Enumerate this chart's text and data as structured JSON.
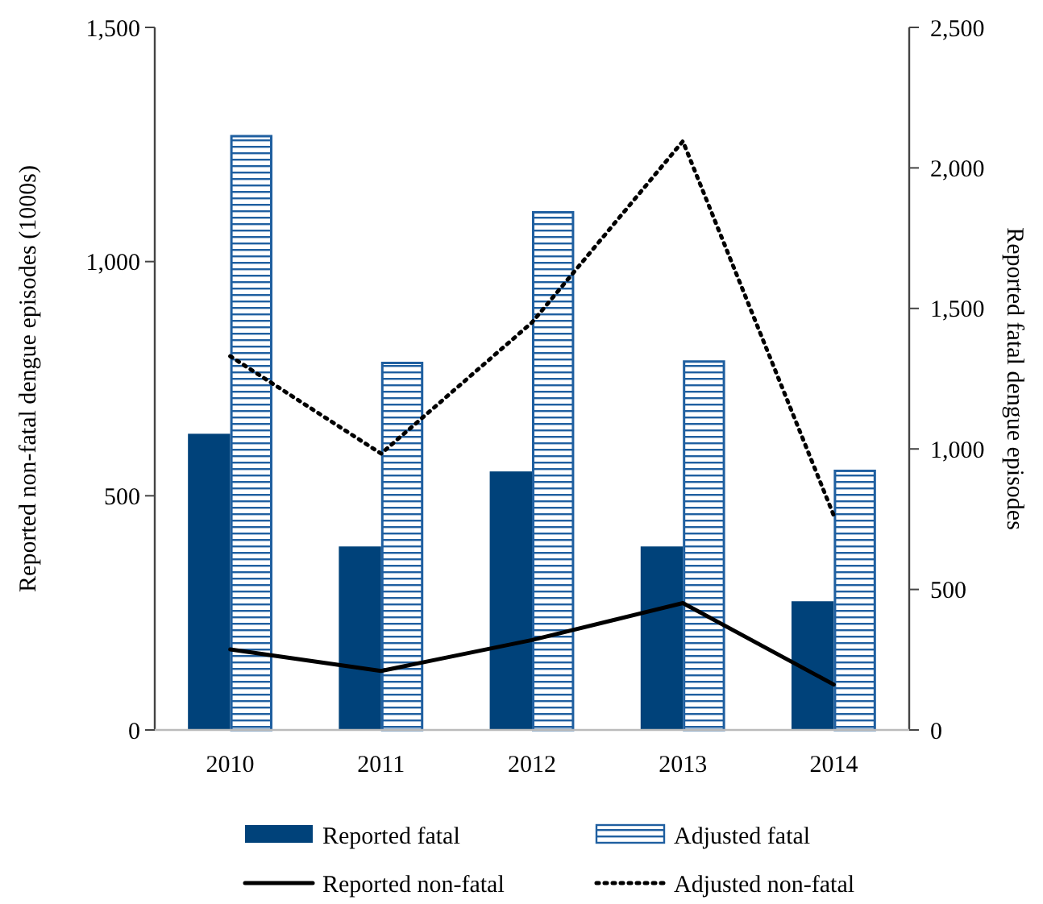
{
  "chart_data": {
    "type": "bar",
    "categories": [
      "2010",
      "2011",
      "2012",
      "2013",
      "2014"
    ],
    "ylabel": "Reported non-fatal dengue episodes (1000s)",
    "y2label": "Reported fatal dengue episodes",
    "ylim": [
      0,
      1500
    ],
    "yticks": [
      0,
      500,
      {
        "value": 1000,
        "label": "1,000"
      },
      {
        "value": 1500,
        "label": "1,500"
      }
    ],
    "y2lim": [
      0,
      2500
    ],
    "y2ticks": [
      0,
      500,
      {
        "value": 1000,
        "label": "1,000"
      },
      {
        "value": 1500,
        "label": "1,500"
      },
      {
        "value": 2000,
        "label": "2,000"
      },
      {
        "value": 2500,
        "label": "2,500"
      }
    ],
    "series": [
      {
        "name": "Reported fatal",
        "axis": "y2",
        "color": "#00427a",
        "values": [
          1054,
          653,
          920,
          653,
          458
        ]
      },
      {
        "name": "Adjusted fatal",
        "axis": "y2",
        "color": "#1f5fa0",
        "values": [
          2113,
          1306,
          1842,
          1311,
          922
        ]
      },
      {
        "name": "Reported non-fatal",
        "type": "line",
        "color": "#000000",
        "line_style": "solid",
        "values": [
          172,
          126,
          192,
          271,
          97
        ]
      },
      {
        "name": "Adjusted non-fatal",
        "type": "line",
        "color": "#000000",
        "line_style": "dotted",
        "values": [
          798,
          590,
          870,
          1257,
          458
        ]
      }
    ],
    "legend": "bottom",
    "grid": false
  }
}
